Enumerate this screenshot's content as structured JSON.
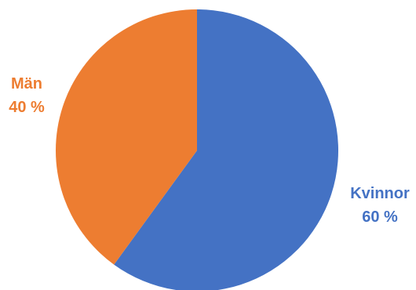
{
  "chart_data": {
    "type": "pie",
    "slices": [
      {
        "label": "Kvinnor",
        "value": 60,
        "value_label": "60 %",
        "color": "#4472C4"
      },
      {
        "label": "Män",
        "value": 40,
        "value_label": "40 %",
        "color": "#ED7D31"
      }
    ],
    "start_angle": "12 o'clock",
    "direction": "clockwise",
    "legend": "none"
  }
}
